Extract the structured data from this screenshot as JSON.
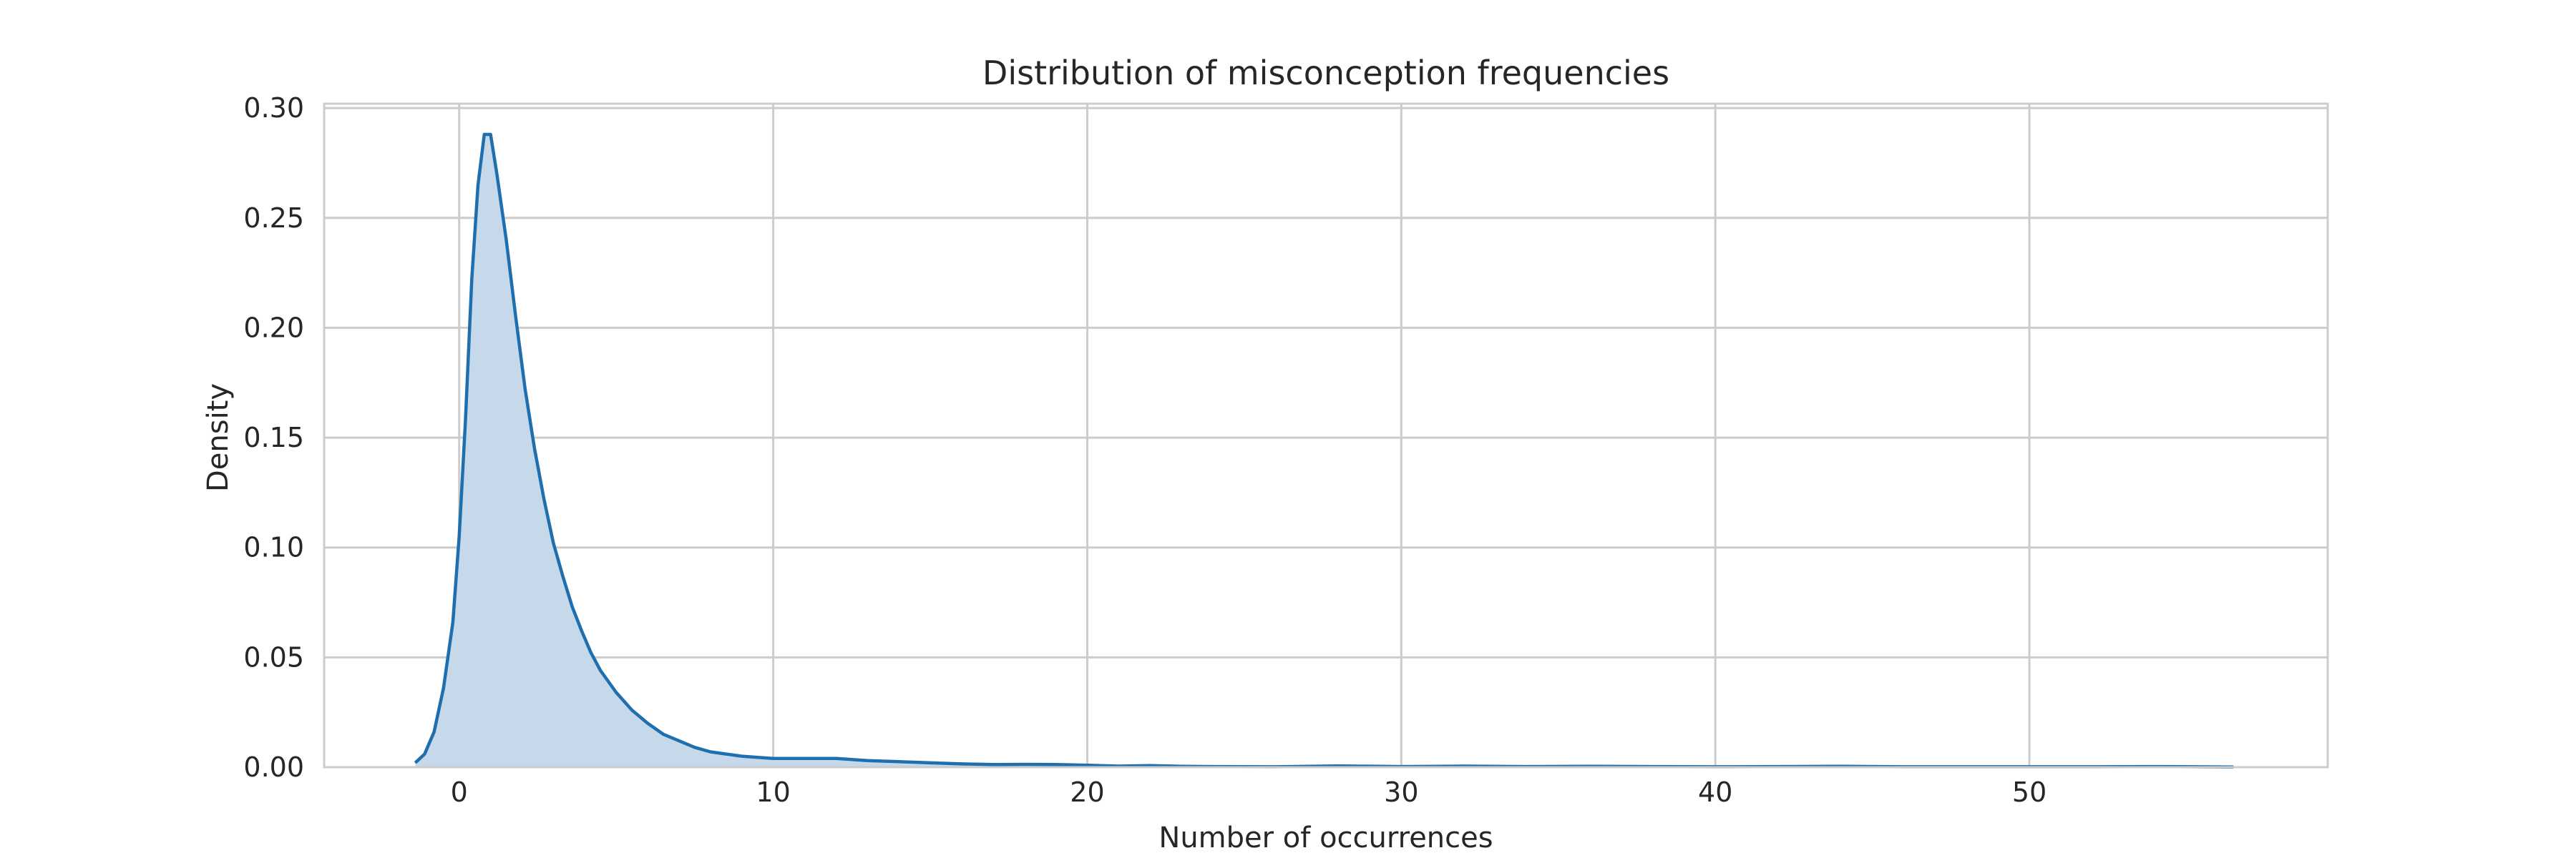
{
  "chart_data": {
    "type": "area",
    "title": "Distribution of misconception frequencies",
    "xlabel": "Number of occurrences",
    "ylabel": "Density",
    "xlim": [
      -4.3,
      59.5
    ],
    "ylim": [
      0,
      0.302
    ],
    "xticks": [
      0,
      10,
      20,
      30,
      40,
      50
    ],
    "yticks": [
      0.0,
      0.05,
      0.1,
      0.15,
      0.2,
      0.25,
      0.3
    ],
    "ytick_labels": [
      "0.00",
      "0.05",
      "0.10",
      "0.15",
      "0.20",
      "0.25",
      "0.30"
    ],
    "grid": true,
    "series": [
      {
        "color": "#1f6fae",
        "fill_color": "#c5d9eb",
        "x": [
          -1.4,
          -1.1,
          -0.8,
          -0.5,
          -0.2,
          0.0,
          0.2,
          0.4,
          0.6,
          0.8,
          1.0,
          1.2,
          1.5,
          1.8,
          2.1,
          2.4,
          2.7,
          3.0,
          3.3,
          3.6,
          3.9,
          4.2,
          4.5,
          5.0,
          5.5,
          6.0,
          6.5,
          7.0,
          7.5,
          8.0,
          8.5,
          9.0,
          9.5,
          10.0,
          10.5,
          11.0,
          12.0,
          13.0,
          14.0,
          15.0,
          16.0,
          17.0,
          18.0,
          19.0,
          20.0,
          21.0,
          22.0,
          23.0,
          24.0,
          26.0,
          28.0,
          30.0,
          32.0,
          34.0,
          36.0,
          38.0,
          40.0,
          42.0,
          44.0,
          46.0,
          48.0,
          50.0,
          52.0,
          54.0,
          56.5
        ],
        "y": [
          0.002,
          0.006,
          0.016,
          0.036,
          0.066,
          0.105,
          0.158,
          0.222,
          0.265,
          0.288,
          0.288,
          0.27,
          0.24,
          0.205,
          0.172,
          0.145,
          0.122,
          0.102,
          0.087,
          0.073,
          0.062,
          0.052,
          0.044,
          0.034,
          0.026,
          0.02,
          0.015,
          0.012,
          0.009,
          0.007,
          0.006,
          0.005,
          0.0045,
          0.004,
          0.004,
          0.004,
          0.004,
          0.003,
          0.0025,
          0.002,
          0.0015,
          0.0012,
          0.0013,
          0.0012,
          0.0009,
          0.0005,
          0.0007,
          0.0004,
          0.0003,
          0.0002,
          0.0006,
          0.0003,
          0.0005,
          0.0003,
          0.0004,
          0.0003,
          0.0002,
          0.0003,
          0.0004,
          0.0002,
          0.0002,
          0.0002,
          0.0002,
          0.0003,
          0.0001
        ]
      }
    ]
  }
}
